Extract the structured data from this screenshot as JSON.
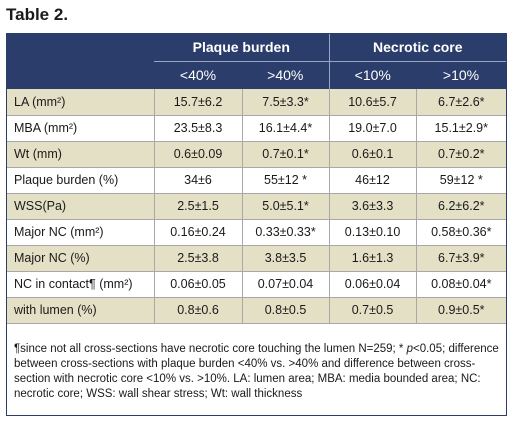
{
  "title": "Table 2.",
  "header": {
    "group1": "Plaque burden",
    "group2": "Necrotic core",
    "sub": [
      "<40%",
      ">40%",
      "<10%",
      ">10%"
    ]
  },
  "rows": [
    {
      "label": "LA (mm²)",
      "c1": "15.7±6.2",
      "c2": "7.5±3.3*",
      "c3": "10.6±5.7",
      "c4": "6.7±2.6*"
    },
    {
      "label": "MBA (mm²)",
      "c1": "23.5±8.3",
      "c2": "16.1±4.4*",
      "c3": "19.0±7.0",
      "c4": "15.1±2.9*"
    },
    {
      "label": "Wt (mm)",
      "c1": "0.6±0.09",
      "c2": "0.7±0.1*",
      "c3": "0.6±0.1",
      "c4": "0.7±0.2*"
    },
    {
      "label": "Plaque burden (%)",
      "c1": "34±6",
      "c2": "55±12 *",
      "c3": "46±12",
      "c4": "59±12 *"
    },
    {
      "label": "WSS(Pa)",
      "c1": "2.5±1.5",
      "c2": "5.0±5.1*",
      "c3": "3.6±3.3",
      "c4": "6.2±6.2*"
    },
    {
      "label": "Major NC (mm²)",
      "c1": "0.16±0.24",
      "c2": "0.33±0.33*",
      "c3": "0.13±0.10",
      "c4": "0.58±0.36*"
    },
    {
      "label": "Major NC (%)",
      "c1": "2.5±3.8",
      "c2": "3.8±3.5",
      "c3": "1.6±1.3",
      "c4": "6.7±3.9*"
    },
    {
      "label": "NC in contact¶ (mm²)",
      "c1": "0.06±0.05",
      "c2": "0.07±0.04",
      "c3": "0.06±0.04",
      "c4": "0.08±0.04*"
    },
    {
      "label": "with lumen (%)",
      "c1": "0.8±0.6",
      "c2": "0.8±0.5",
      "c3": "0.7±0.5",
      "c4": "0.9±0.5*"
    }
  ],
  "footnote": {
    "part1": "¶since not all cross-sections have necrotic core touching the lumen N=259; * ",
    "p": "p",
    "part2": "<0.05; difference between cross-sections with plaque burden <40% vs. >40% and difference between cross-section with necrotic core <10% vs. >10%. LA: lumen area; MBA: media bounded area; NC: necrotic core; WSS: wall shear stress; Wt: wall thickness"
  }
}
